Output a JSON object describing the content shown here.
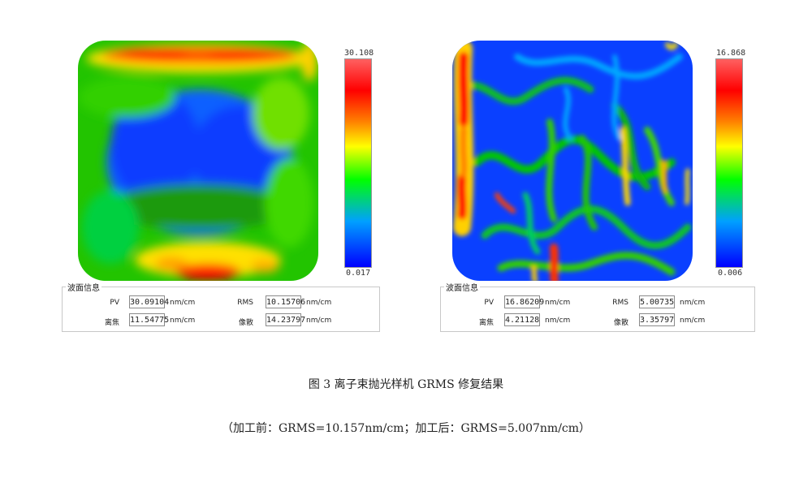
{
  "chart_data": [
    {
      "type": "heatmap",
      "title": "",
      "colorbar": {
        "min": 0.017,
        "max": 30.108,
        "min_label": "0.017",
        "max_label": "30.108",
        "colors": [
          "#0000ff",
          "#00a0ff",
          "#00ff00",
          "#ffff00",
          "#ff8000",
          "#ff0000",
          "#ff6060"
        ]
      },
      "info": {
        "title": "波面信息",
        "fields": [
          {
            "label": "PV",
            "value": "30.09104",
            "unit": "nm/cm"
          },
          {
            "label": "RMS",
            "value": "10.15706",
            "unit": "nm/cm"
          },
          {
            "label": "离焦",
            "value": "11.54775",
            "unit": "nm/cm"
          },
          {
            "label": "像散",
            "value": "14.23797",
            "unit": "nm/cm"
          }
        ]
      }
    },
    {
      "type": "heatmap",
      "title": "",
      "colorbar": {
        "min": 0.006,
        "max": 16.868,
        "min_label": "0.006",
        "max_label": "16.868",
        "colors": [
          "#0000ff",
          "#00a0ff",
          "#00ff00",
          "#ffff00",
          "#ff8000",
          "#ff0000",
          "#ff6060"
        ]
      },
      "info": {
        "title": "波面信息",
        "fields": [
          {
            "label": "PV",
            "value": "16.86209",
            "unit": "nm/cm"
          },
          {
            "label": "RMS",
            "value": "5.00735",
            "unit": "nm/cm"
          },
          {
            "label": "离焦",
            "value": "4.21128",
            "unit": "nm/cm"
          },
          {
            "label": "像散",
            "value": "3.35797",
            "unit": "nm/cm"
          }
        ]
      }
    }
  ],
  "caption": {
    "main": "图 3 离子束抛光样机 GRMS 修复结果",
    "sub": "（加工前：GRMS=10.157nm/cm；加工后：GRMS=5.007nm/cm）"
  }
}
